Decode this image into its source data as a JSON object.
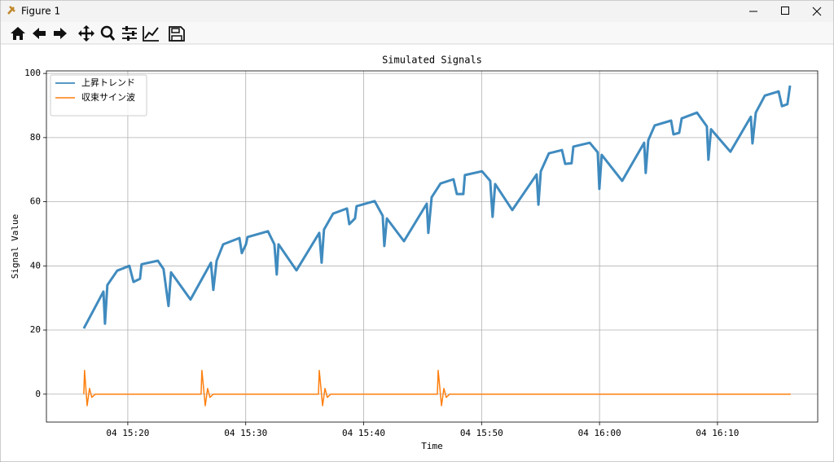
{
  "window": {
    "title": "Figure 1"
  },
  "chart_data": {
    "type": "line",
    "title": "Simulated Signals",
    "xlabel": "Time",
    "ylabel": "Signal Value",
    "xlim": [
      "04 15:13:06",
      "04 16:18:30"
    ],
    "ylim": [
      -8.7,
      100.8
    ],
    "xticks": [
      "04 15:20",
      "04 15:30",
      "04 15:40",
      "04 15:50",
      "04 16:00",
      "04 16:10"
    ],
    "yticks": [
      0,
      20,
      40,
      60,
      80,
      100
    ],
    "grid": true,
    "legend": "upper left",
    "series": [
      {
        "name": "上昇トレンド",
        "color": "#1f77b4",
        "x": [
          "04 15:16:16",
          "04 15:17:56",
          "04 15:18:04",
          "04 15:18:16",
          "04 15:19:06",
          "04 15:20:08",
          "04 15:20:29",
          "04 15:21:02",
          "04 15:21:10",
          "04 15:22:33",
          "04 15:23:02",
          "04 15:23:27",
          "04 15:23:40",
          "04 15:25:19",
          "04 15:27:03",
          "04 15:27:15",
          "04 15:27:32",
          "04 15:28:05",
          "04 15:29:28",
          "04 15:29:40",
          "04 15:30:01",
          "04 15:30:09",
          "04 15:31:53",
          "04 15:32:26",
          "04 15:32:38",
          "04 15:32:47",
          "04 15:34:18",
          "04 15:36:14",
          "04 15:36:26",
          "04 15:36:38",
          "04 15:37:24",
          "04 15:38:35",
          "04 15:38:47",
          "04 15:39:16",
          "04 15:39:24",
          "04 15:40:56",
          "04 15:41:37",
          "04 15:41:45",
          "04 15:41:58",
          "04 15:43:25",
          "04 15:45:21",
          "04 15:45:29",
          "04 15:45:46",
          "04 15:46:31",
          "04 15:47:37",
          "04 15:47:54",
          "04 15:48:27",
          "04 15:48:35",
          "04 15:50:02",
          "04 15:50:44",
          "04 15:50:56",
          "04 15:51:09",
          "04 15:52:36",
          "04 15:54:40",
          "04 15:54:49",
          "04 15:55:01",
          "04 15:55:42",
          "04 15:56:49",
          "04 15:57:05",
          "04 15:57:38",
          "04 15:57:47",
          "04 15:59:10",
          "04 15:59:51",
          "04 15:59:59",
          "04 16:00:11",
          "04 16:01:55",
          "04 16:03:47",
          "04 16:03:55",
          "04 16:04:08",
          "04 16:04:41",
          "04 16:06:04",
          "04 16:06:16",
          "04 16:06:45",
          "04 16:06:58",
          "04 16:08:16",
          "04 16:09:06",
          "04 16:09:14",
          "04 16:09:27",
          "04 16:11:06",
          "04 16:12:50",
          "04 16:12:58",
          "04 16:13:15",
          "04 16:14:01",
          "04 16:15:11",
          "04 16:15:28",
          "04 16:15:56",
          "04 16:16:09"
        ],
        "values": [
          20.5,
          32,
          22,
          34,
          38.5,
          40,
          35,
          36,
          40.5,
          41.6,
          39,
          27.5,
          38,
          29.5,
          41,
          32.5,
          41.6,
          46.7,
          48.7,
          44,
          46.7,
          49,
          50.8,
          46.7,
          37.3,
          46.7,
          38.6,
          50.3,
          41,
          51.3,
          56.3,
          57.9,
          53,
          54.8,
          58.6,
          60.2,
          55.6,
          46.2,
          54.8,
          47.7,
          59.4,
          50.3,
          61.4,
          65.7,
          67,
          62.4,
          62.4,
          68.3,
          69.5,
          66.5,
          55.3,
          65.5,
          57.4,
          68.5,
          59.1,
          69.5,
          75.1,
          76.1,
          71.8,
          72,
          77.2,
          78.4,
          75.4,
          64,
          74.6,
          66.5,
          78.4,
          69,
          79.2,
          83.8,
          85.3,
          81,
          81.5,
          86,
          87.8,
          83.5,
          73.1,
          82.6,
          75.6,
          86.5,
          78.2,
          87.8,
          93.1,
          94.4,
          89.8,
          90.4,
          96.2
        ]
      },
      {
        "name": "収束サイン波",
        "color": "#ff7f0e",
        "x": [
          "04 15:16:16",
          "04 15:16:20",
          "04 15:16:33",
          "04 15:16:45",
          "04 15:16:57",
          "04 15:17:14",
          "04 15:26:13",
          "04 15:26:17",
          "04 15:26:34",
          "04 15:26:46",
          "04 15:26:58",
          "04 15:27:15",
          "04 15:36:10",
          "04 15:36:14",
          "04 15:36:31",
          "04 15:36:43",
          "04 15:36:55",
          "04 15:37:12",
          "04 15:46:15",
          "04 15:46:19",
          "04 15:46:36",
          "04 15:46:48",
          "04 15:47:00",
          "04 15:47:17",
          "04 16:16:13"
        ],
        "values": [
          0,
          7.4,
          -3.6,
          1.8,
          -1,
          0,
          0,
          7.4,
          -3.6,
          1.8,
          -1,
          0,
          0,
          7.4,
          -3.6,
          1.8,
          -1,
          0,
          0,
          7.4,
          -3.6,
          1.8,
          -1,
          0,
          0
        ]
      }
    ]
  }
}
